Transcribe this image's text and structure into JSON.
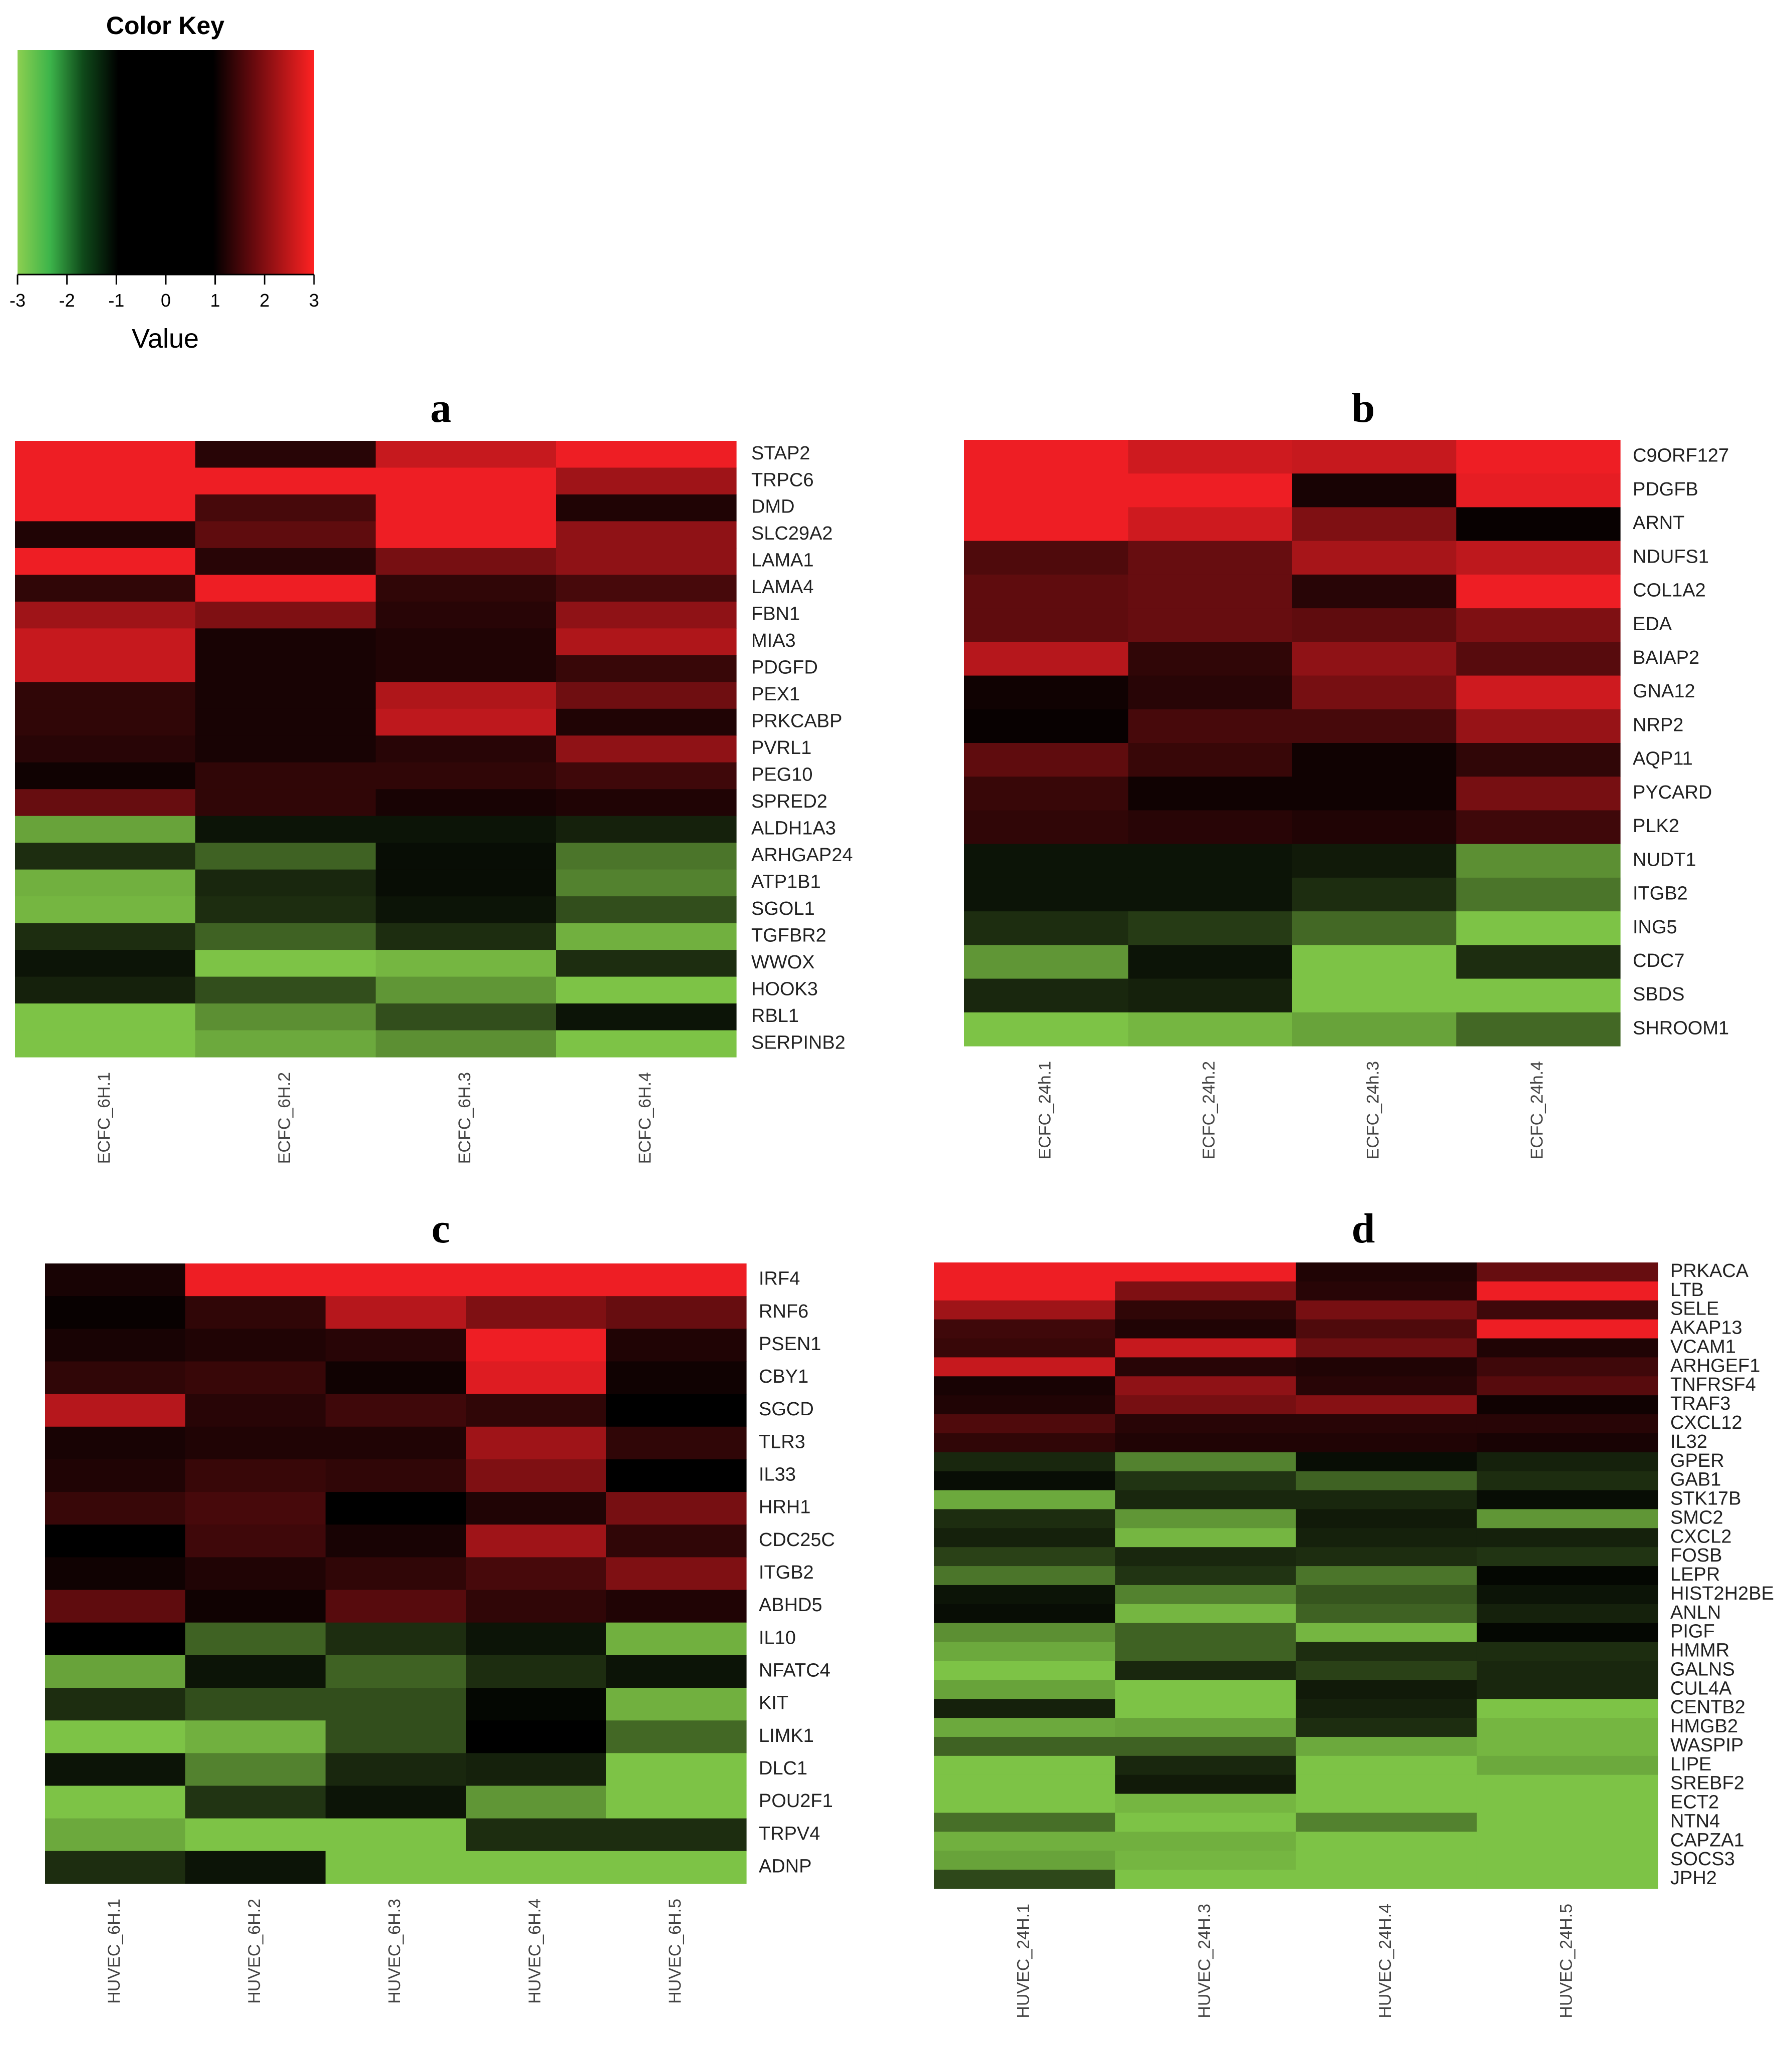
{
  "color_key": {
    "title": "Color Key",
    "xlabel": "Value",
    "ticks": [
      "-3",
      "-2",
      "-1",
      "0",
      "1",
      "2",
      "3"
    ],
    "range": [
      -3,
      3
    ],
    "low_color": "#8ccf50",
    "mid_color": "#000000",
    "high_color": "#ff2222"
  },
  "chart_data": [
    {
      "type": "heatmap",
      "panel_label": "a",
      "columns": [
        "ECFC_6H.1",
        "ECFC_6H.2",
        "ECFC_6H.3",
        "ECFC_6H.4"
      ],
      "rows": [
        "STAP2",
        "TRPC6",
        "DMD",
        "SLC29A2",
        "LAMA1",
        "LAMA4",
        "FBN1",
        "MIA3",
        "PDGFD",
        "PEX1",
        "PRKCABP",
        "PVRL1",
        "PEG10",
        "SPRED2",
        "ALDH1A3",
        "ARHGAP24",
        "ATP1B1",
        "SGOL1",
        "TGFBR2",
        "WWOX",
        "HOOK3",
        "RBL1",
        "SERPINB2"
      ],
      "values": [
        [
          3.0,
          0.5,
          2.5,
          3.0
        ],
        [
          3.0,
          3.0,
          3.0,
          2.0
        ],
        [
          3.0,
          0.9,
          3.0,
          0.4
        ],
        [
          0.4,
          1.2,
          3.0,
          1.8
        ],
        [
          3.0,
          0.5,
          1.5,
          1.8
        ],
        [
          0.6,
          3.0,
          0.6,
          0.9
        ],
        [
          2.0,
          1.6,
          0.5,
          1.8
        ],
        [
          2.5,
          0.3,
          0.4,
          2.2
        ],
        [
          2.5,
          0.3,
          0.4,
          0.7
        ],
        [
          0.6,
          0.3,
          2.2,
          1.4
        ],
        [
          0.6,
          0.3,
          2.4,
          0.4
        ],
        [
          0.5,
          0.3,
          0.5,
          1.8
        ],
        [
          0.2,
          0.6,
          0.6,
          0.8
        ],
        [
          1.3,
          0.6,
          0.3,
          0.4
        ],
        [
          -2.5,
          -0.3,
          -0.3,
          -0.5
        ],
        [
          -0.7,
          -1.5,
          -0.2,
          -1.8
        ],
        [
          -2.7,
          -0.6,
          -0.2,
          -2.0
        ],
        [
          -2.8,
          -0.7,
          -0.3,
          -1.2
        ],
        [
          -0.7,
          -1.5,
          -0.7,
          -2.7
        ],
        [
          -0.3,
          -3.0,
          -2.8,
          -0.7
        ],
        [
          -0.5,
          -1.2,
          -2.3,
          -3.0
        ],
        [
          -3.0,
          -2.2,
          -1.2,
          -0.3
        ],
        [
          -3.0,
          -2.6,
          -2.2,
          -3.0
        ]
      ]
    },
    {
      "type": "heatmap",
      "panel_label": "b",
      "columns": [
        "ECFC_24h.1",
        "ECFC_24h.2",
        "ECFC_24h.3",
        "ECFC_24h.4"
      ],
      "rows": [
        "C9ORF127",
        "PDGFB",
        "ARNT",
        "NDUFS1",
        "COL1A2",
        "EDA",
        "BAIAP2",
        "GNA12",
        "NRP2",
        "AQP11",
        "PYCARD",
        "PLK2",
        "NUDT1",
        "ITGB2",
        "ING5",
        "CDC7",
        "SBDS",
        "SHROOM1"
      ],
      "values": [
        [
          3.0,
          2.6,
          2.5,
          3.0
        ],
        [
          3.0,
          3.0,
          0.3,
          2.9
        ],
        [
          3.0,
          2.6,
          1.6,
          0.1
        ],
        [
          1.0,
          1.3,
          2.1,
          2.4
        ],
        [
          1.2,
          1.3,
          0.5,
          3.0
        ],
        [
          1.2,
          1.3,
          1.2,
          1.6
        ],
        [
          2.3,
          0.6,
          1.8,
          1.1
        ],
        [
          0.2,
          0.5,
          1.5,
          2.6
        ],
        [
          0.1,
          0.9,
          0.9,
          1.9
        ],
        [
          1.2,
          0.7,
          0.2,
          0.6
        ],
        [
          0.7,
          0.2,
          0.2,
          1.5
        ],
        [
          0.6,
          0.5,
          0.4,
          0.8
        ],
        [
          -0.3,
          -0.3,
          -0.4,
          -2.2
        ],
        [
          -0.3,
          -0.3,
          -0.7,
          -1.8
        ],
        [
          -0.7,
          -0.9,
          -1.6,
          -3.0
        ],
        [
          -2.3,
          -0.3,
          -3.0,
          -0.7
        ],
        [
          -0.6,
          -0.5,
          -3.0,
          -3.0
        ],
        [
          -3.0,
          -2.8,
          -2.5,
          -1.6
        ]
      ]
    },
    {
      "type": "heatmap",
      "panel_label": "c",
      "columns": [
        "HUVEC_6H.1",
        "HUVEC_6H.2",
        "HUVEC_6H.3",
        "HUVEC_6H.4",
        "HUVEC_6H.5"
      ],
      "rows": [
        "IRF4",
        "RNF6",
        "PSEN1",
        "CBY1",
        "SGCD",
        "TLR3",
        "IL33",
        "HRH1",
        "CDC25C",
        "ITGB2",
        "ABHD5",
        "IL10",
        "NFATC4",
        "KIT",
        "LIMK1",
        "DLC1",
        "POU2F1",
        "TRPV4",
        "ADNP"
      ],
      "values": [
        [
          0.3,
          3.0,
          3.0,
          3.0,
          3.0
        ],
        [
          0.1,
          0.6,
          2.3,
          1.6,
          1.3
        ],
        [
          0.3,
          0.4,
          0.5,
          3.0,
          0.4
        ],
        [
          0.6,
          0.7,
          0.2,
          2.8,
          0.2
        ],
        [
          2.3,
          0.5,
          0.8,
          0.6,
          0.0
        ],
        [
          0.3,
          0.4,
          0.4,
          2.0,
          0.6
        ],
        [
          0.4,
          0.7,
          0.6,
          1.6,
          0.0
        ],
        [
          0.7,
          0.9,
          0.0,
          0.4,
          1.5
        ],
        [
          0.0,
          0.8,
          0.3,
          2.0,
          0.6
        ],
        [
          0.2,
          0.4,
          0.6,
          0.9,
          1.6
        ],
        [
          1.2,
          0.2,
          1.1,
          0.6,
          0.4
        ],
        [
          0.0,
          -1.5,
          -0.7,
          -0.3,
          -2.7
        ],
        [
          -2.5,
          -0.3,
          -1.5,
          -0.7,
          -0.3
        ],
        [
          -0.7,
          -1.2,
          -1.2,
          -0.1,
          -2.7
        ],
        [
          -3.0,
          -2.7,
          -1.2,
          0.0,
          -1.6
        ],
        [
          -0.3,
          -2.0,
          -0.6,
          -0.5,
          -3.0
        ],
        [
          -3.0,
          -0.8,
          -0.3,
          -2.3,
          -3.0
        ],
        [
          -2.6,
          -3.0,
          -3.0,
          -0.7,
          -0.7
        ],
        [
          -0.7,
          -0.3,
          -3.0,
          -3.0,
          -3.0
        ]
      ]
    },
    {
      "type": "heatmap",
      "panel_label": "d",
      "columns": [
        "HUVEC_24H.1",
        "HUVEC_24H.3",
        "HUVEC_24H.4",
        "HUVEC_24H.5"
      ],
      "rows": [
        "PRKACA",
        "LTB",
        "SELE",
        "AKAP13",
        "VCAM1",
        "ARHGEF1",
        "TNFRSF4",
        "TRAF3",
        "CXCL12",
        "IL32",
        "GPER",
        "GAB1",
        "STK17B",
        "SMC2",
        "CXCL2",
        "FOSB",
        "LEPR",
        "HIST2H2BE",
        "ANLN",
        "PIGF",
        "HMMR",
        "GALNS",
        "CUL4A",
        "CENTB2",
        "HMGB2",
        "WASPIP",
        "LIPE",
        "SREBF2",
        "ECT2",
        "NTN4",
        "CAPZA1",
        "SOCS3",
        "JPH2"
      ],
      "values": [
        [
          3.0,
          3.0,
          0.4,
          1.3
        ],
        [
          3.0,
          1.6,
          0.5,
          3.0
        ],
        [
          2.0,
          0.6,
          1.5,
          0.8
        ],
        [
          0.8,
          0.4,
          1.0,
          3.0
        ],
        [
          0.7,
          2.5,
          1.4,
          0.4
        ],
        [
          2.5,
          0.5,
          0.4,
          0.8
        ],
        [
          0.3,
          1.8,
          0.5,
          1.1
        ],
        [
          0.4,
          1.5,
          1.7,
          0.2
        ],
        [
          1.0,
          0.5,
          0.5,
          0.5
        ],
        [
          0.6,
          0.4,
          0.4,
          0.3
        ],
        [
          -0.6,
          -2.0,
          -0.2,
          -0.5
        ],
        [
          -0.2,
          -0.8,
          -1.5,
          -0.7
        ],
        [
          -2.6,
          -0.6,
          -0.6,
          -0.2
        ],
        [
          -0.7,
          -2.3,
          -0.4,
          -2.3
        ],
        [
          -0.5,
          -2.8,
          -0.5,
          -0.5
        ],
        [
          -1.0,
          -0.6,
          -0.7,
          -0.8
        ],
        [
          -1.8,
          -0.8,
          -1.8,
          -0.1
        ],
        [
          -0.3,
          -2.0,
          -1.3,
          -0.3
        ],
        [
          -0.2,
          -2.8,
          -1.5,
          -0.5
        ],
        [
          -2.2,
          -1.5,
          -2.8,
          -0.1
        ],
        [
          -2.6,
          -1.5,
          -0.7,
          -0.7
        ],
        [
          -3.0,
          -0.6,
          -1.0,
          -0.6
        ],
        [
          -2.5,
          -3.0,
          -0.4,
          -0.6
        ],
        [
          -0.5,
          -3.0,
          -0.5,
          -3.0
        ],
        [
          -2.6,
          -2.5,
          -0.7,
          -2.8
        ],
        [
          -1.5,
          -1.5,
          -2.6,
          -2.8
        ],
        [
          -3.0,
          -0.6,
          -3.0,
          -2.6
        ],
        [
          -3.0,
          -0.4,
          -3.0,
          -3.0
        ],
        [
          -3.0,
          -2.8,
          -3.0,
          -3.0
        ],
        [
          -1.7,
          -3.0,
          -2.0,
          -3.0
        ],
        [
          -2.7,
          -2.7,
          -3.0,
          -3.0
        ],
        [
          -2.5,
          -2.8,
          -3.0,
          -3.0
        ],
        [
          -1.1,
          -3.0,
          -3.0,
          -3.0
        ]
      ]
    }
  ]
}
